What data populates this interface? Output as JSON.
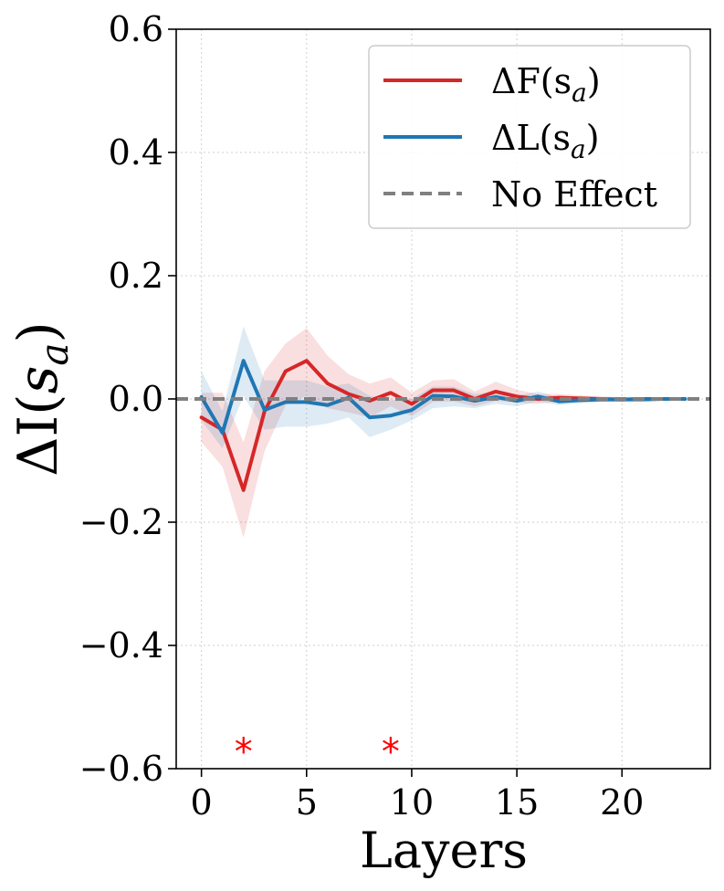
{
  "chart_data": {
    "type": "line",
    "xlabel": "Layers",
    "ylabel": "ΔI(s_a)",
    "xlim": [
      -1.2,
      24.2
    ],
    "ylim": [
      -0.6,
      0.6
    ],
    "xticks": [
      0,
      5,
      10,
      15,
      20
    ],
    "xtick_labels": [
      "0",
      "5",
      "10",
      "15",
      "20"
    ],
    "yticks": [
      -0.6,
      -0.4,
      -0.2,
      0.0,
      0.2,
      0.4,
      0.6
    ],
    "ytick_labels": [
      "−0.6",
      "−0.4",
      "−0.2",
      "0.0",
      "0.2",
      "0.4",
      "0.6"
    ],
    "grid": true,
    "legend_position": "top-right",
    "x": [
      0,
      1,
      2,
      3,
      4,
      5,
      6,
      7,
      8,
      9,
      10,
      11,
      12,
      13,
      14,
      15,
      16,
      17,
      18,
      19,
      20,
      21,
      22,
      23
    ],
    "series": [
      {
        "name": "ΔF(s_a)",
        "legend_main": "ΔF(s",
        "legend_sub": "a",
        "legend_close": ")",
        "color": "#d62728",
        "values": [
          -0.03,
          -0.05,
          -0.148,
          -0.02,
          0.045,
          0.062,
          0.025,
          0.008,
          -0.003,
          0.01,
          -0.008,
          0.014,
          0.014,
          0.0,
          0.012,
          0.004,
          0.0,
          0.002,
          0.001,
          0.0,
          -0.001,
          0.0,
          0.0,
          0.0
        ],
        "lower": [
          -0.07,
          -0.11,
          -0.225,
          -0.085,
          -0.01,
          0.005,
          -0.015,
          -0.022,
          -0.03,
          -0.012,
          -0.028,
          -0.005,
          -0.004,
          -0.012,
          -0.003,
          -0.006,
          -0.008,
          -0.004,
          -0.004,
          -0.004,
          -0.004,
          -0.003,
          -0.003,
          -0.003
        ],
        "upper": [
          0.01,
          0.01,
          -0.07,
          0.045,
          0.09,
          0.115,
          0.07,
          0.04,
          0.025,
          0.035,
          0.01,
          0.03,
          0.032,
          0.012,
          0.028,
          0.015,
          0.008,
          0.008,
          0.006,
          0.004,
          0.003,
          0.003,
          0.003,
          0.003
        ]
      },
      {
        "name": "ΔL(s_a)",
        "legend_main": "ΔL(s",
        "legend_sub": "a",
        "legend_close": ")",
        "color": "#1f77b4",
        "values": [
          0.003,
          -0.055,
          0.062,
          -0.018,
          -0.005,
          -0.005,
          -0.01,
          0.002,
          -0.03,
          -0.027,
          -0.018,
          0.005,
          0.004,
          -0.003,
          0.003,
          -0.003,
          0.004,
          -0.004,
          -0.002,
          -0.001,
          -0.001,
          -0.001,
          0.0,
          0.0
        ],
        "lower": [
          -0.035,
          -0.08,
          0.005,
          -0.05,
          -0.045,
          -0.045,
          -0.04,
          -0.03,
          -0.062,
          -0.05,
          -0.035,
          -0.015,
          -0.012,
          -0.015,
          -0.008,
          -0.012,
          -0.004,
          -0.01,
          -0.007,
          -0.005,
          -0.004,
          -0.003,
          -0.003,
          -0.003
        ],
        "upper": [
          0.045,
          -0.02,
          0.118,
          0.03,
          0.03,
          0.03,
          0.02,
          0.025,
          0.005,
          -0.002,
          0.0,
          0.02,
          0.02,
          0.008,
          0.012,
          0.005,
          0.012,
          0.003,
          0.004,
          0.003,
          0.002,
          0.002,
          0.002,
          0.002
        ]
      }
    ],
    "reference_line": {
      "name": "No Effect",
      "y": 0.0,
      "color": "#808080"
    },
    "annotations": [
      {
        "text": "*",
        "x": 2,
        "y": -0.56,
        "color": "#ff0000"
      },
      {
        "text": "*",
        "x": 9,
        "y": -0.56,
        "color": "#ff0000"
      }
    ]
  }
}
